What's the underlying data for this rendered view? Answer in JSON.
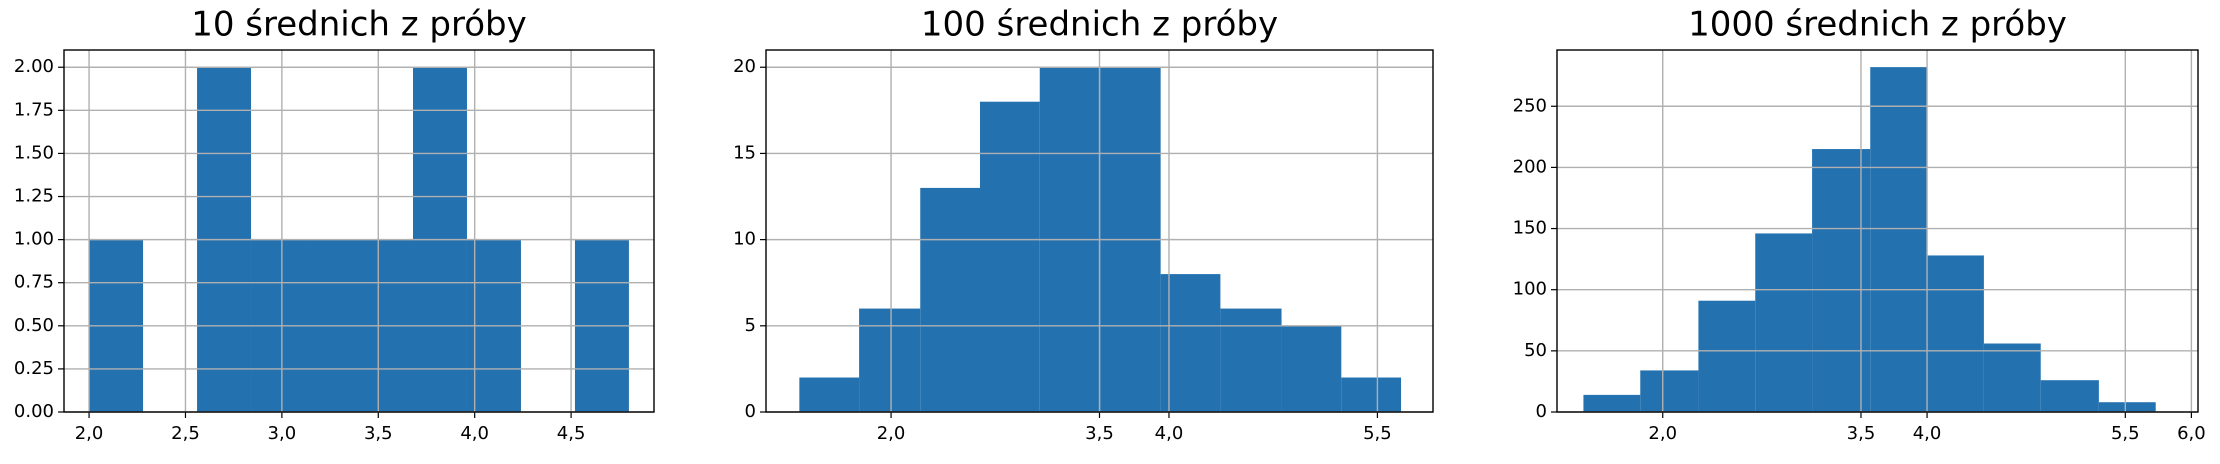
{
  "chart_data": [
    {
      "type": "histogram",
      "title": "10 średnich z próby",
      "color": "#2471b0",
      "grid": true,
      "bins": [
        2.0,
        2.28,
        2.56,
        2.84,
        3.12,
        3.4,
        3.68,
        3.96,
        4.24,
        4.52,
        4.8
      ],
      "values": [
        1,
        0,
        2,
        1,
        1,
        1,
        2,
        1,
        0,
        1
      ],
      "xlim": [
        1.87,
        4.93
      ],
      "ylim": [
        0,
        2.1
      ],
      "xticks": [
        {
          "value": 2.0,
          "label": "2,0"
        },
        {
          "value": 2.5,
          "label": "2,5"
        },
        {
          "value": 3.0,
          "label": "3,0"
        },
        {
          "value": 3.5,
          "label": "3,5"
        },
        {
          "value": 4.0,
          "label": "4,0"
        },
        {
          "value": 4.5,
          "label": "4,5"
        }
      ],
      "yticks": [
        {
          "value": 0,
          "label": "0.00"
        },
        {
          "value": 0.25,
          "label": "0.25"
        },
        {
          "value": 0.5,
          "label": "0.50"
        },
        {
          "value": 0.75,
          "label": "0.75"
        },
        {
          "value": 1,
          "label": "1.00"
        },
        {
          "value": 1.25,
          "label": "1.25"
        },
        {
          "value": 1.5,
          "label": "1.50"
        },
        {
          "value": 1.75,
          "label": "1.75"
        },
        {
          "value": 2,
          "label": "2.00"
        }
      ]
    },
    {
      "type": "histogram",
      "title": "100 średnich z próby",
      "color": "#2471b0",
      "grid": true,
      "bins": [
        1.34,
        1.77,
        2.21,
        2.64,
        3.07,
        3.51,
        3.94,
        4.37,
        4.81,
        5.24,
        5.67
      ],
      "values": [
        2,
        6,
        13,
        18,
        20,
        20,
        8,
        6,
        5,
        2
      ],
      "xlim": [
        1.1,
        5.9
      ],
      "ylim": [
        0,
        21
      ],
      "xticks": [
        {
          "value": 2.0,
          "label": "2,0"
        },
        {
          "value": 3.5,
          "label": "3,5"
        },
        {
          "value": 4.0,
          "label": "4,0"
        },
        {
          "value": 5.5,
          "label": "5,5"
        }
      ],
      "yticks": [
        0,
        5,
        10,
        15,
        20
      ]
    },
    {
      "type": "histogram",
      "title": "1000 średnich z próby",
      "color": "#2471b0",
      "grid": true,
      "bins": [
        1.4,
        1.83,
        2.27,
        2.7,
        3.13,
        3.57,
        4.0,
        4.43,
        4.86,
        5.3,
        5.73
      ],
      "values": [
        14,
        34,
        91,
        146,
        215,
        282,
        128,
        56,
        26,
        8
      ],
      "xlim": [
        1.2,
        6.05
      ],
      "ylim": [
        0,
        296
      ],
      "xticks": [
        {
          "value": 2.0,
          "label": "2,0"
        },
        {
          "value": 3.5,
          "label": "3,5"
        },
        {
          "value": 4.0,
          "label": "4,0"
        },
        {
          "value": 5.5,
          "label": "5,5"
        },
        {
          "value": 6.0,
          "label": "6,0"
        }
      ],
      "yticks": [
        0,
        50,
        100,
        150,
        200,
        250
      ]
    }
  ]
}
